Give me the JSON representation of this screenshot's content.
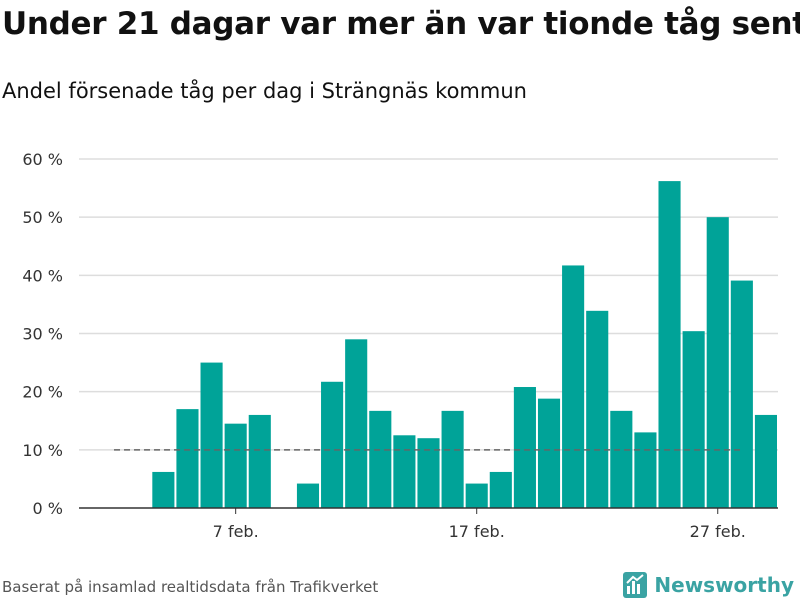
{
  "title": "Under 21 dagar var mer än var tionde tåg sent",
  "subtitle": "Andel försenade tåg per dag i Strängnäs kommun",
  "source": "Baserat på insamlad realtidsdata från Trafikverket",
  "brand": {
    "name": "Newsworthy",
    "icon": "newsworthy-logo-icon",
    "color": "#3aa3a3"
  },
  "colors": {
    "bar": "#00a398",
    "grid": "#dddddd",
    "reference": "#666666",
    "axis": "#333333"
  },
  "chart_data": {
    "type": "bar",
    "title": "Under 21 dagar var mer än var tionde tåg sent",
    "subtitle": "Andel försenade tåg per dag i Strängnäs kommun",
    "xlabel": "",
    "ylabel": "",
    "unit": "%",
    "x_start_day": 1,
    "x_range": [
      0.5,
      29.5
    ],
    "ylim": [
      0,
      60
    ],
    "yticks": [
      0,
      10,
      20,
      30,
      40,
      50,
      60
    ],
    "ytick_labels": [
      "0 %",
      "10 %",
      "20 %",
      "30 %",
      "40 %",
      "50 %",
      "60 %"
    ],
    "xticks": [
      7,
      17,
      27
    ],
    "xtick_labels": [
      "7 feb.",
      "17 feb.",
      "27 feb."
    ],
    "grid": true,
    "days": [
      4,
      5,
      6,
      7,
      8,
      10,
      11,
      12,
      13,
      14,
      15,
      16,
      17,
      18,
      19,
      20,
      21,
      22,
      23,
      24,
      25,
      26,
      27,
      28,
      29
    ],
    "values": [
      6.2,
      17.0,
      25.0,
      14.5,
      16.0,
      4.2,
      21.7,
      29.0,
      16.7,
      12.5,
      12.0,
      16.7,
      4.2,
      6.2,
      20.8,
      18.8,
      41.7,
      33.9,
      16.7,
      13.0,
      56.2,
      30.4,
      50.0,
      39.1,
      16.0
    ],
    "reference_line": {
      "value": 10,
      "style": "dashed"
    }
  }
}
